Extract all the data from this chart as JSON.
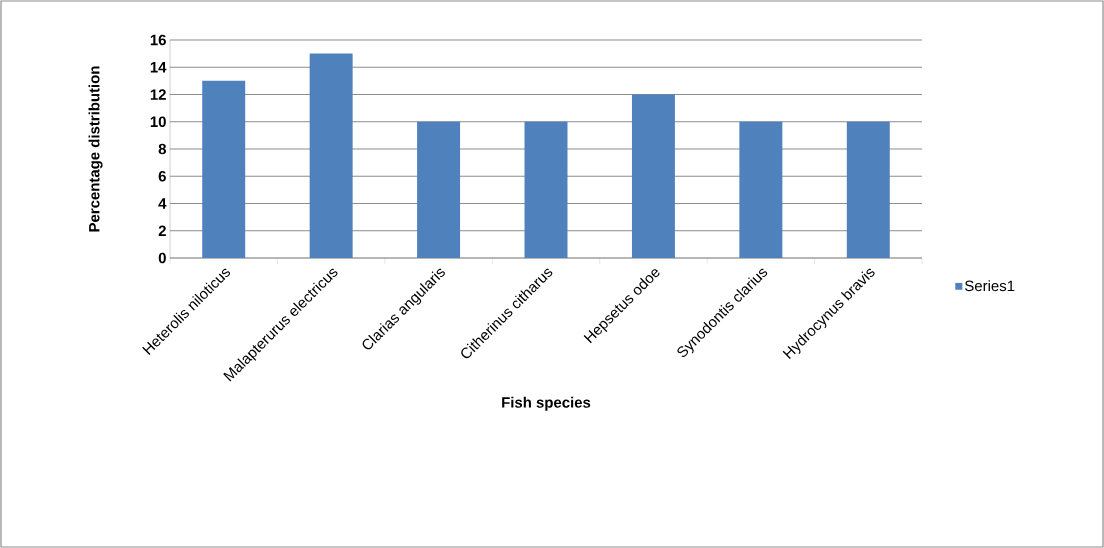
{
  "chart_data": {
    "type": "bar",
    "xlabel": "Fish species",
    "ylabel": "Percentage distribution",
    "categories": [
      "Heterolis niloticus",
      "Malapterurus electricus",
      "Clarias angularis",
      "Citherinus citharus",
      "Hepsetus odoe",
      "Synodontis clarius",
      "Hydrocynus bravis"
    ],
    "series": [
      {
        "name": "Series1",
        "color": "#4f81bd",
        "values": [
          13,
          15,
          10,
          10,
          12,
          10,
          10
        ]
      }
    ],
    "ylim": [
      0,
      16
    ],
    "yticks": [
      0,
      2,
      4,
      6,
      8,
      10,
      12,
      14,
      16
    ],
    "grid": "y",
    "legend": "right"
  }
}
